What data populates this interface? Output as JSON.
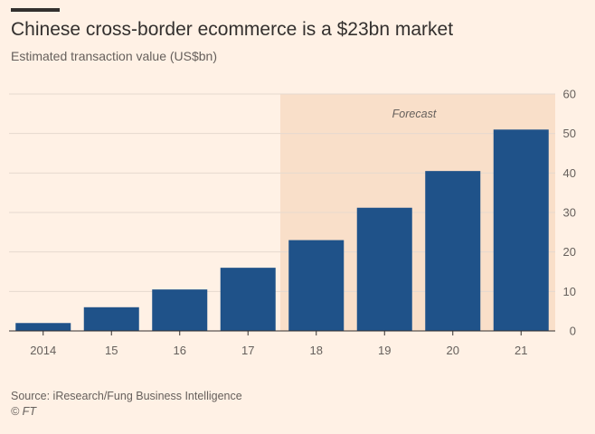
{
  "header": {
    "title": "Chinese cross-border ecommerce is a $23bn market",
    "subtitle": "Estimated transaction value (US$bn)"
  },
  "footer": {
    "source": "Source: iResearch/Fung Business Intelligence",
    "credit": "© FT"
  },
  "colors": {
    "background": "#fff1e5",
    "bar": "#1f5289",
    "forecast_shade": "#f9dfc9",
    "gridline": "#e6d9ce",
    "text": "#33302e",
    "muted_text": "#66605c"
  },
  "chart_data": {
    "type": "bar",
    "title": "Chinese cross-border ecommerce is a $23bn market",
    "subtitle": "Estimated transaction value (US$bn)",
    "categories": [
      "2014",
      "15",
      "16",
      "17",
      "18",
      "19",
      "20",
      "21"
    ],
    "values": [
      2,
      6,
      10.5,
      16,
      23,
      31.2,
      40.5,
      51
    ],
    "ylim": [
      0,
      60
    ],
    "yticks": [
      0,
      10,
      20,
      30,
      40,
      50,
      60
    ],
    "y_axis_side": "right",
    "grid": true,
    "forecast": {
      "label": "Forecast",
      "start_category": "18",
      "end_category": "21"
    }
  }
}
